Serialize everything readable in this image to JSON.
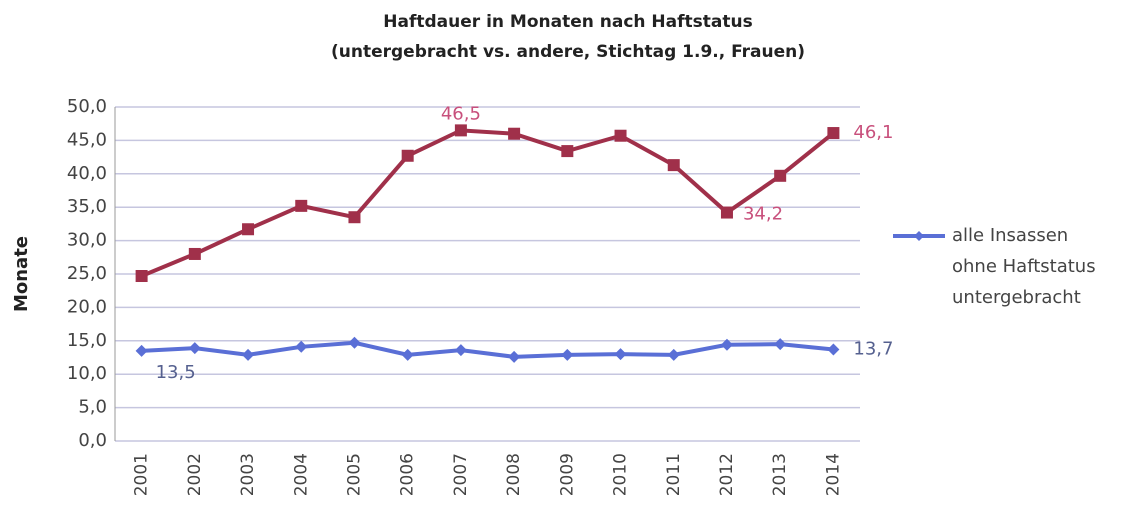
{
  "chart_data": {
    "type": "line",
    "title": "Haftdauer in Monaten nach Haftstatus",
    "subtitle": "(untergebracht vs. andere, Stichtag 1.9., Frauen)",
    "y_label": "Monate",
    "categories": [
      "2001",
      "2002",
      "2003",
      "2004",
      "2005",
      "2006",
      "2007",
      "2008",
      "2009",
      "2010",
      "2011",
      "2012",
      "2013",
      "2014"
    ],
    "series": [
      {
        "color": "#a0304a",
        "values": [
          24.7,
          28.0,
          31.7,
          35.2,
          33.5,
          42.7,
          46.5,
          46.0,
          43.4,
          45.7,
          41.3,
          34.2,
          39.7,
          46.1
        ],
        "value_labels": [
          null,
          null,
          null,
          null,
          null,
          null,
          "46,5",
          null,
          null,
          null,
          null,
          "34,2",
          null,
          "46,1"
        ]
      },
      {
        "name": "alle Insassen ohne Haftstatus untergebracht",
        "color": "#5a6fd6",
        "values": [
          13.5,
          13.9,
          12.9,
          14.1,
          14.7,
          12.9,
          13.6,
          12.6,
          12.9,
          13.0,
          12.9,
          14.4,
          14.5,
          13.7
        ],
        "value_labels": [
          "13,5",
          null,
          null,
          null,
          null,
          null,
          null,
          null,
          null,
          null,
          null,
          null,
          null,
          "13,7"
        ]
      }
    ],
    "ylim": [
      0,
      50
    ],
    "yticks": [
      {
        "value": 0,
        "label": "0,0"
      },
      {
        "value": 5,
        "label": "5,0"
      },
      {
        "value": 10,
        "label": "10,0"
      },
      {
        "value": 15,
        "label": "15,0"
      },
      {
        "value": 20,
        "label": "20,0"
      },
      {
        "value": 25,
        "label": "25,0"
      },
      {
        "value": 30,
        "label": "30,0"
      },
      {
        "value": 35,
        "label": "35,0"
      },
      {
        "value": 40,
        "label": "40,0"
      },
      {
        "value": 45,
        "label": "45,0"
      },
      {
        "value": 50,
        "label": "50,0"
      }
    ],
    "grid": true,
    "legend": "right"
  }
}
